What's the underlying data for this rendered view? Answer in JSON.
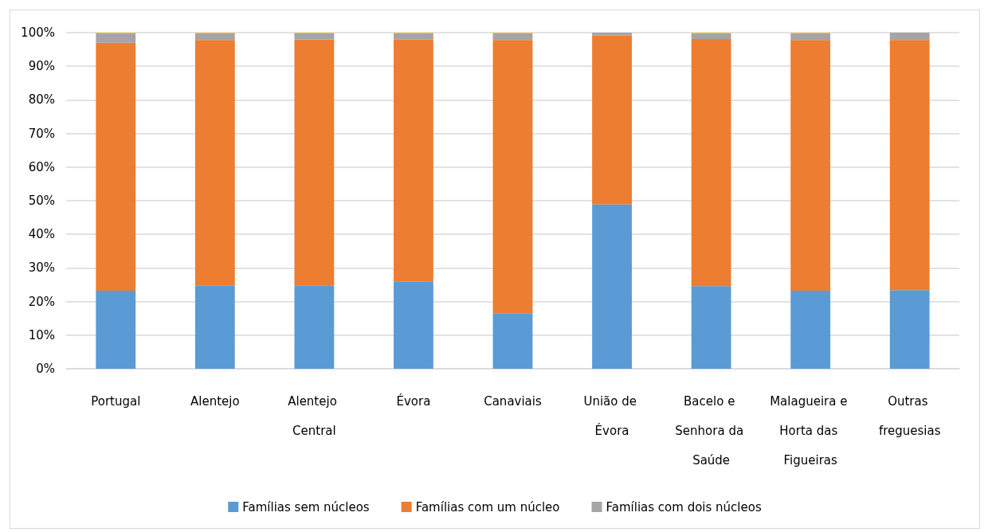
{
  "chart_data": {
    "type": "bar",
    "stacked": true,
    "categories": [
      "Portugal",
      "Alentejo",
      "Alentejo Central",
      "Évora",
      "Canaviais",
      "União de Évora",
      "Bacelo e Senhora da Saúde",
      "Malagueira e Horta das Figueiras",
      "Outras freguesias"
    ],
    "series": [
      {
        "name": "Famílias sem núcleos",
        "color": "#5b9bd5",
        "values": [
          23.2,
          24.8,
          24.8,
          26.0,
          16.5,
          48.9,
          24.6,
          23.2,
          23.4
        ]
      },
      {
        "name": "Famílias com um núcleo",
        "color": "#ed7d31",
        "values": [
          73.8,
          73.0,
          73.2,
          71.9,
          81.3,
          50.2,
          73.5,
          74.6,
          74.4
        ]
      },
      {
        "name": "Famílias com dois núcleos",
        "color": "#a5a5a5",
        "values": [
          2.8,
          2.0,
          1.8,
          1.9,
          2.0,
          0.9,
          1.7,
          2.0,
          2.2
        ]
      },
      {
        "color": "#ffc000",
        "values": [
          0.2,
          0.2,
          0.2,
          0.2,
          0.2,
          null,
          0.2,
          0.2,
          null
        ]
      }
    ],
    "ylim": [
      0,
      100
    ],
    "yticks": [
      {
        "value": 0,
        "label": "0%"
      },
      {
        "value": 10,
        "label": "10%"
      },
      {
        "value": 20,
        "label": "20%"
      },
      {
        "value": 30,
        "label": "30%"
      },
      {
        "value": 40,
        "label": "40%"
      },
      {
        "value": 50,
        "label": "50%"
      },
      {
        "value": 60,
        "label": "60%"
      },
      {
        "value": 70,
        "label": "70%"
      },
      {
        "value": 80,
        "label": "80%"
      },
      {
        "value": 90,
        "label": "90%"
      },
      {
        "value": 100,
        "label": "100%"
      }
    ],
    "grid": "y",
    "legend": "bottom"
  }
}
